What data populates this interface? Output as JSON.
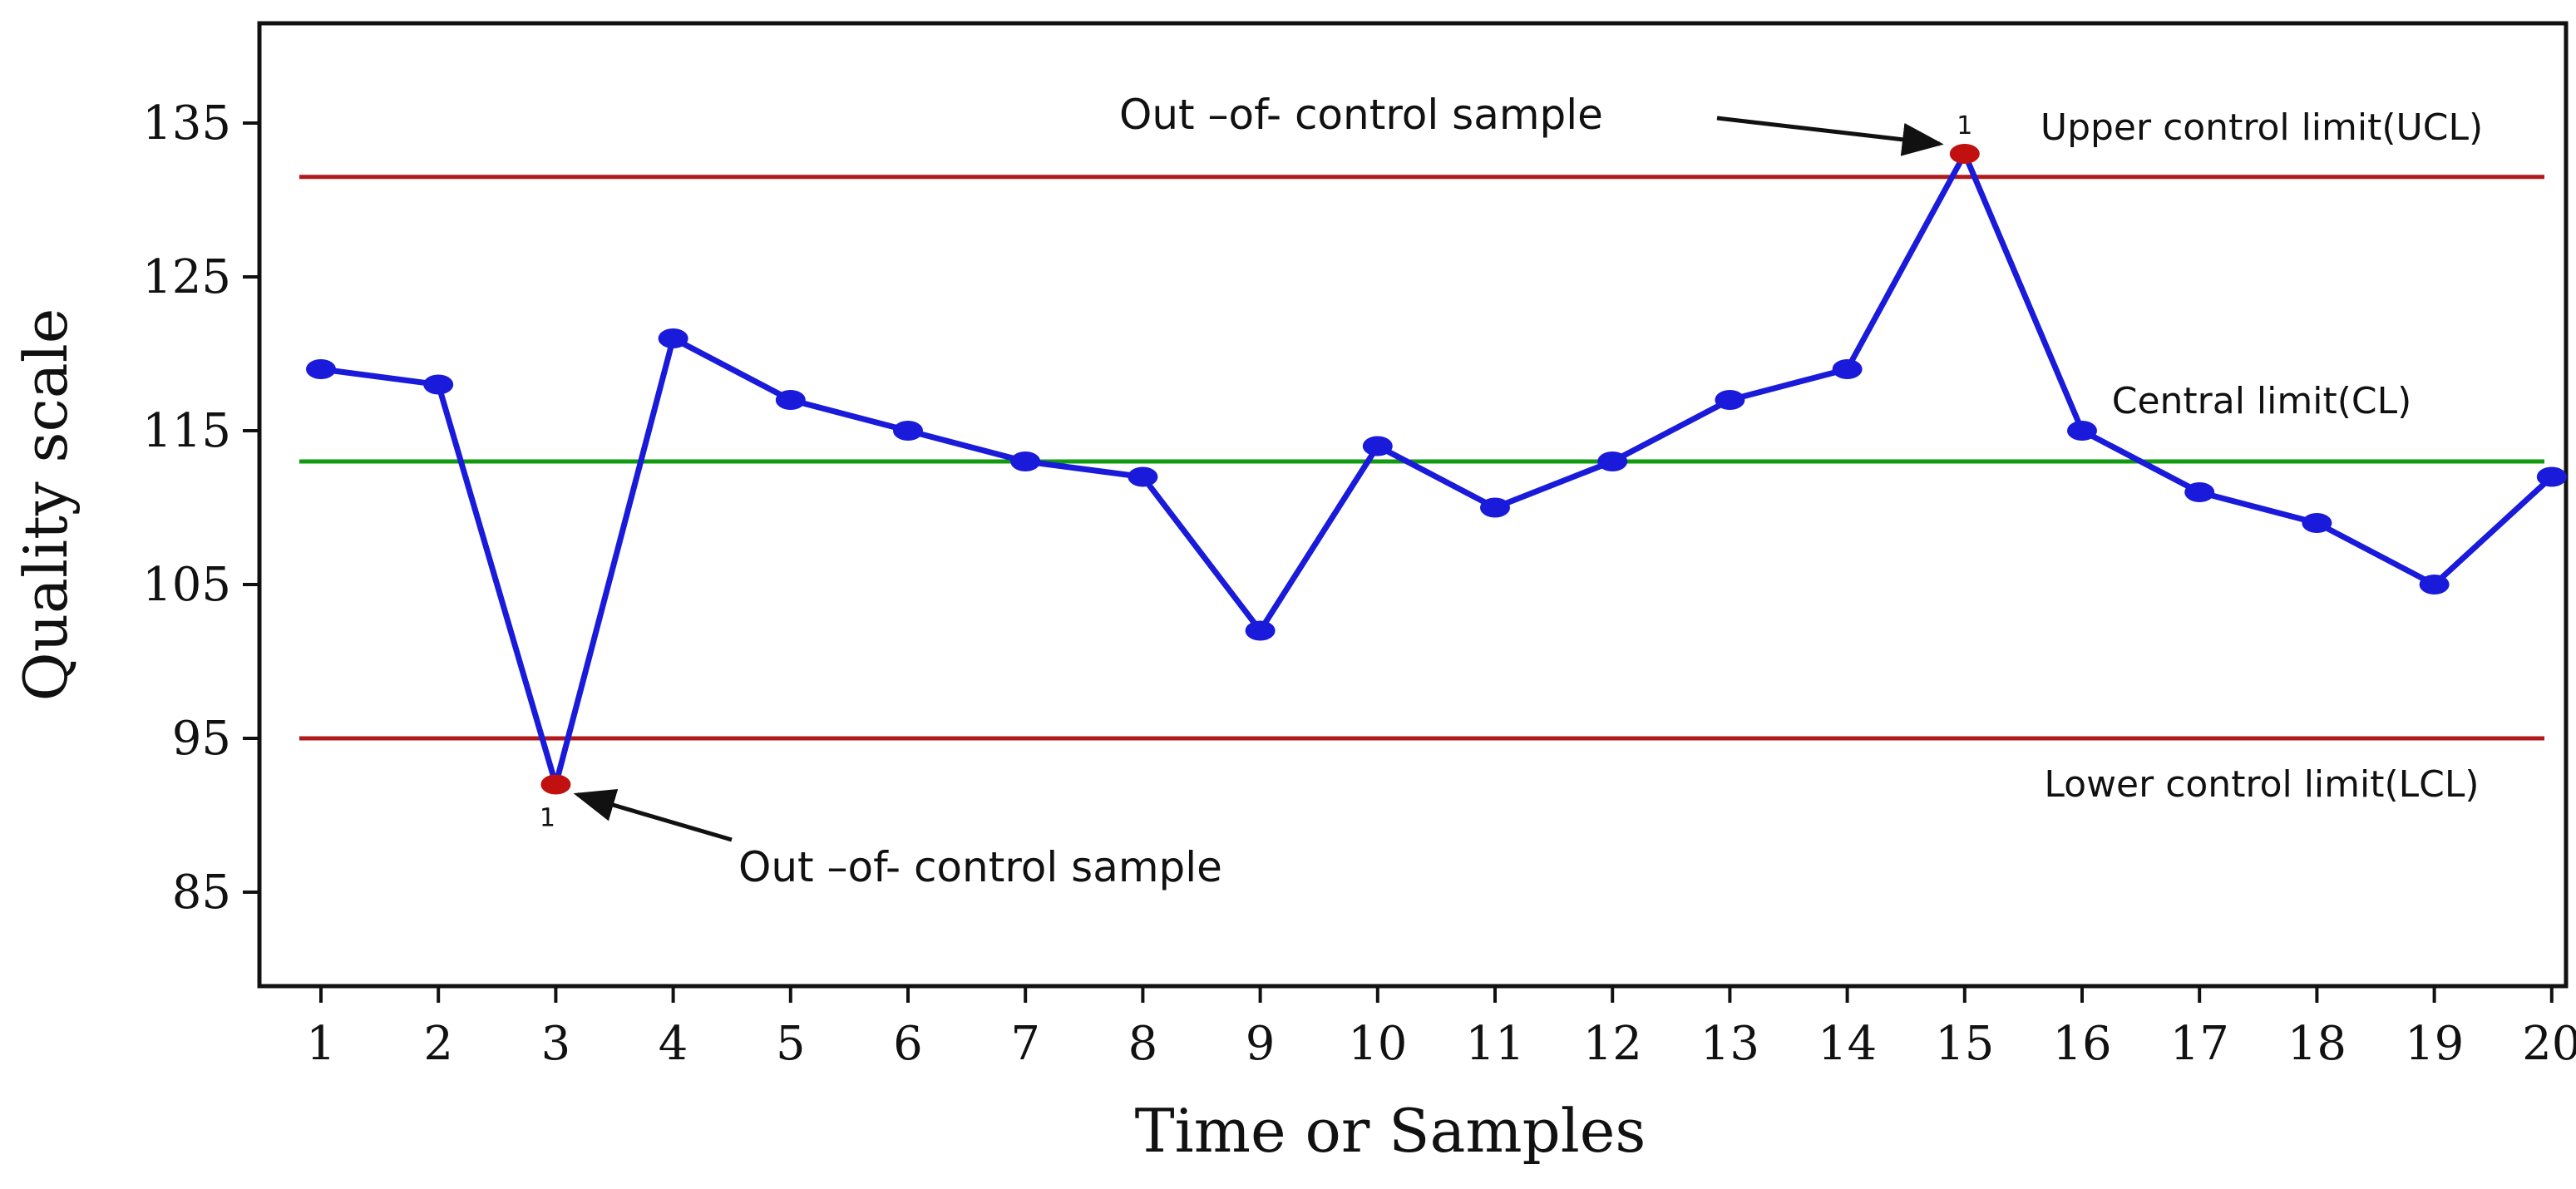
{
  "chart_data": {
    "type": "line",
    "title": "",
    "xlabel": "Time or Samples",
    "ylabel": "Quality scale",
    "x": [
      1,
      2,
      3,
      4,
      5,
      6,
      7,
      8,
      9,
      10,
      11,
      12,
      13,
      14,
      15,
      16,
      17,
      18,
      19,
      20
    ],
    "series": [
      {
        "name": "Quality",
        "color": "#1a1adb",
        "values": [
          119,
          118,
          92,
          121,
          117,
          115,
          113,
          112,
          102,
          114,
          110,
          113,
          117,
          119,
          133,
          115,
          111,
          109,
          105,
          112
        ]
      }
    ],
    "out_of_control_indices": [
      2,
      14
    ],
    "out_of_control_color": "#c01010",
    "out_of_control_marker_text": "1",
    "limits": [
      {
        "name": "ucl",
        "value": 131.5,
        "label": "Upper control limit(UCL)",
        "color": "#b01a1a"
      },
      {
        "name": "cl",
        "value": 113,
        "label": "Central limit(CL)",
        "color": "#109a10"
      },
      {
        "name": "lcl",
        "value": 95,
        "label": "Lower control limit(LCL)",
        "color": "#b01a1a"
      }
    ],
    "annotations": [
      {
        "text": "Out –of- control sample",
        "target_index": 14
      },
      {
        "text": "Out –of- control sample",
        "target_index": 2
      }
    ],
    "ylim": [
      80,
      140
    ],
    "yticks": [
      85,
      95,
      105,
      115,
      125,
      135
    ],
    "xlim": [
      0.5,
      20.5
    ],
    "grid": false
  }
}
